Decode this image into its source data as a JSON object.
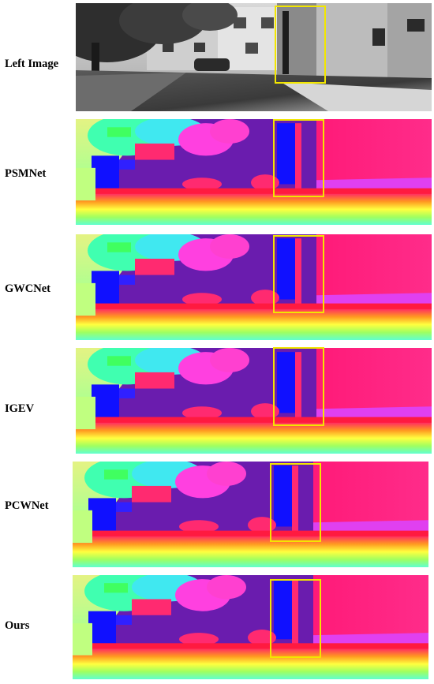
{
  "rows": [
    {
      "id": "left",
      "label": "Left Image",
      "kind": "grayscale"
    },
    {
      "id": "psmnet",
      "label": "PSMNet",
      "kind": "disparity"
    },
    {
      "id": "gwcnet",
      "label": "GWCNet",
      "kind": "disparity"
    },
    {
      "id": "igev",
      "label": "IGEV",
      "kind": "disparity"
    },
    {
      "id": "pcwnet",
      "label": "PCWNet",
      "kind": "disparity"
    },
    {
      "id": "ours",
      "label": "Ours",
      "kind": "disparity"
    }
  ],
  "colors": {
    "highlight_box": "#f2e600",
    "far_background": "#6a1cae",
    "near_background": "#ff1a78",
    "trees_near": "#40ffb0",
    "object_mid": "#1010ff"
  }
}
